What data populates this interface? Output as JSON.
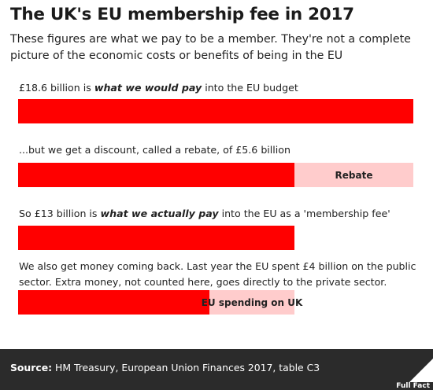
{
  "title": "The UK's EU membership fee in 2017",
  "subtitle": "These figures are what we pay to be a member. They're not a complete picture of the economic costs or benefits of being in the EU",
  "chart_data": {
    "type": "bar",
    "unit": "£ billion",
    "bars": [
      {
        "label_pre": "£18.6 billion is ",
        "label_bold": "what we would pay",
        "label_post": " into the EU budget",
        "value": 18.6,
        "segments": [
          {
            "name": "",
            "value": 18.6,
            "color": "#ff0000"
          }
        ]
      },
      {
        "label_pre": "...but we get a discount, called a rebate, of £5.6 billion",
        "label_bold": "",
        "label_post": "",
        "value": 18.6,
        "segments": [
          {
            "name": "",
            "value": 13.0,
            "color": "#ff0000"
          },
          {
            "name": "Rebate",
            "value": 5.6,
            "color": "#ffcccc"
          }
        ]
      },
      {
        "label_pre": "So £13 billion is ",
        "label_bold": "what we actually pay",
        "label_post": " into the EU as a 'membership fee'",
        "value": 13.0,
        "segments": [
          {
            "name": "",
            "value": 13.0,
            "color": "#ff0000"
          }
        ]
      },
      {
        "label_pre": "We also get money coming back. Last year the EU spent £4 billion on the public sector. Extra money, not counted here, goes directly to the private sector.",
        "label_bold": "",
        "label_post": "",
        "value": 13.0,
        "segments": [
          {
            "name": "",
            "value": 9.0,
            "color": "#ff0000"
          },
          {
            "name": "EU spending on UK",
            "value": 4.0,
            "color": "#ffcccc"
          }
        ]
      }
    ],
    "xlim": [
      0,
      18.6
    ]
  },
  "footer": {
    "source_label": "Source:",
    "source_text": " HM Treasury, European Union Finances 2017, table C3",
    "logo_text": "Full Fact"
  },
  "colors": {
    "main": "#ff0000",
    "light": "#ffcccc",
    "footer_bg": "#2b2b2b"
  }
}
